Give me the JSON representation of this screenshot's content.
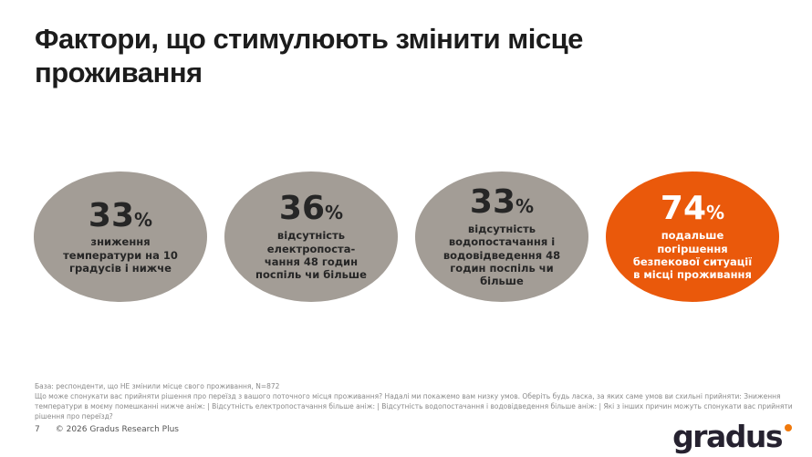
{
  "slide": {
    "title": "Фактори, що стимулюють змінити місце проживання",
    "footnote_base": "База: респонденти, що НЕ змінили місце свого проживання, N=872",
    "footnote_question": "Що може спонукати вас прийняти рішення про переїзд з вашого поточного місця проживання? Надалі ми покажемо вам низку умов. Оберіть будь ласка, за яких саме умов ви схильні прийняти: Зниження температури в моєму помешканні нижче аніж: | Відсутність електропостачання більше аніж: | Відсутність водопостачання і водовідведення більше аніж: | Які з інших причин можуть спонукати вас прийняти рішення про переїзд?",
    "page_number": "7",
    "copyright": "© 2026 Gradus Research Plus",
    "logo_text": "gradus"
  },
  "bubbles": [
    {
      "value": "33",
      "percent": "%",
      "label": "зниження\nтемператури на 10\nградусів і нижче"
    },
    {
      "value": "36",
      "percent": "%",
      "label": "відсутність\nелектропоста-\nчання 48 годин\nпоспіль чи більше"
    },
    {
      "value": "33",
      "percent": "%",
      "label": "відсутність\nводопостачання і\nводовідведення 48\nгодин поспіль чи\nбільше"
    },
    {
      "value": "74",
      "percent": "%",
      "label": "подальше\nпогіршення\nбезпекової ситуації\nв місці проживання"
    }
  ],
  "colors": {
    "bubble_gray": "#a39d96",
    "bubble_orange": "#ea590b",
    "logo_dot_orange": "#f0790b",
    "title_text": "#1c1c1c",
    "footnote_text": "#8a8a8a"
  },
  "chart_data": {
    "type": "bar",
    "title": "Фактори, що стимулюють змінити місце проживання",
    "categories": [
      "зниження температури на 10 градусів і нижче",
      "відсутність електропостачання 48 годин поспіль чи більше",
      "відсутність водопостачання і водовідведення 48 годин поспіль чи більше",
      "подальше погіршення безпекової ситуації в місці проживання"
    ],
    "values": [
      33,
      36,
      33,
      74
    ],
    "unit": "%",
    "highlight_index": 3,
    "base_note": "База: респонденти, що НЕ змінили місце свого проживання, N=872",
    "layout": "four ellipses in a row, last one highlighted orange"
  }
}
